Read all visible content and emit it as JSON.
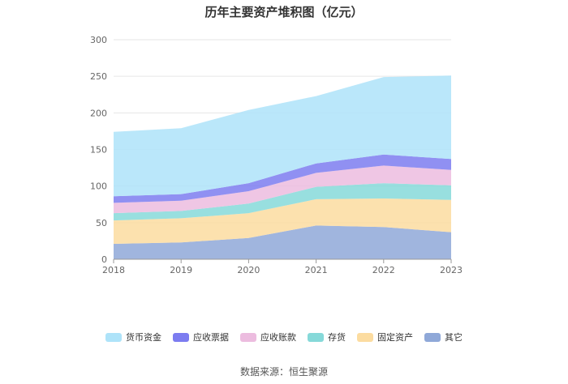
{
  "chart_data": {
    "type": "area",
    "stacked": true,
    "title": "历年主要资产堆积图（亿元）",
    "categories": [
      "2018",
      "2019",
      "2020",
      "2021",
      "2022",
      "2023"
    ],
    "ylim": [
      0,
      300
    ],
    "yticks": [
      0,
      50,
      100,
      150,
      200,
      250,
      300
    ],
    "grid": true,
    "legend_position": "bottom",
    "series": [
      {
        "name": "其它",
        "color": "#8fa8d8",
        "values": [
          21,
          23,
          29,
          46,
          44,
          37
        ]
      },
      {
        "name": "固定资产",
        "color": "#fcdca0",
        "values": [
          32,
          33,
          34,
          36,
          39,
          44
        ]
      },
      {
        "name": "存货",
        "color": "#86d9d9",
        "values": [
          10,
          10,
          13,
          17,
          21,
          20
        ]
      },
      {
        "name": "应收账款",
        "color": "#ecbcdf",
        "values": [
          14,
          14,
          17,
          19,
          24,
          21
        ]
      },
      {
        "name": "应收票据",
        "color": "#7c7cf0",
        "values": [
          9,
          9,
          11,
          13,
          15,
          15
        ]
      },
      {
        "name": "货币资金",
        "color": "#aee3f9",
        "values": [
          88,
          90,
          100,
          92,
          106,
          114
        ]
      }
    ],
    "legend_order": [
      "货币资金",
      "应收票据",
      "应收账款",
      "存货",
      "固定资产",
      "其它"
    ],
    "source": "数据来源：恒生聚源"
  }
}
